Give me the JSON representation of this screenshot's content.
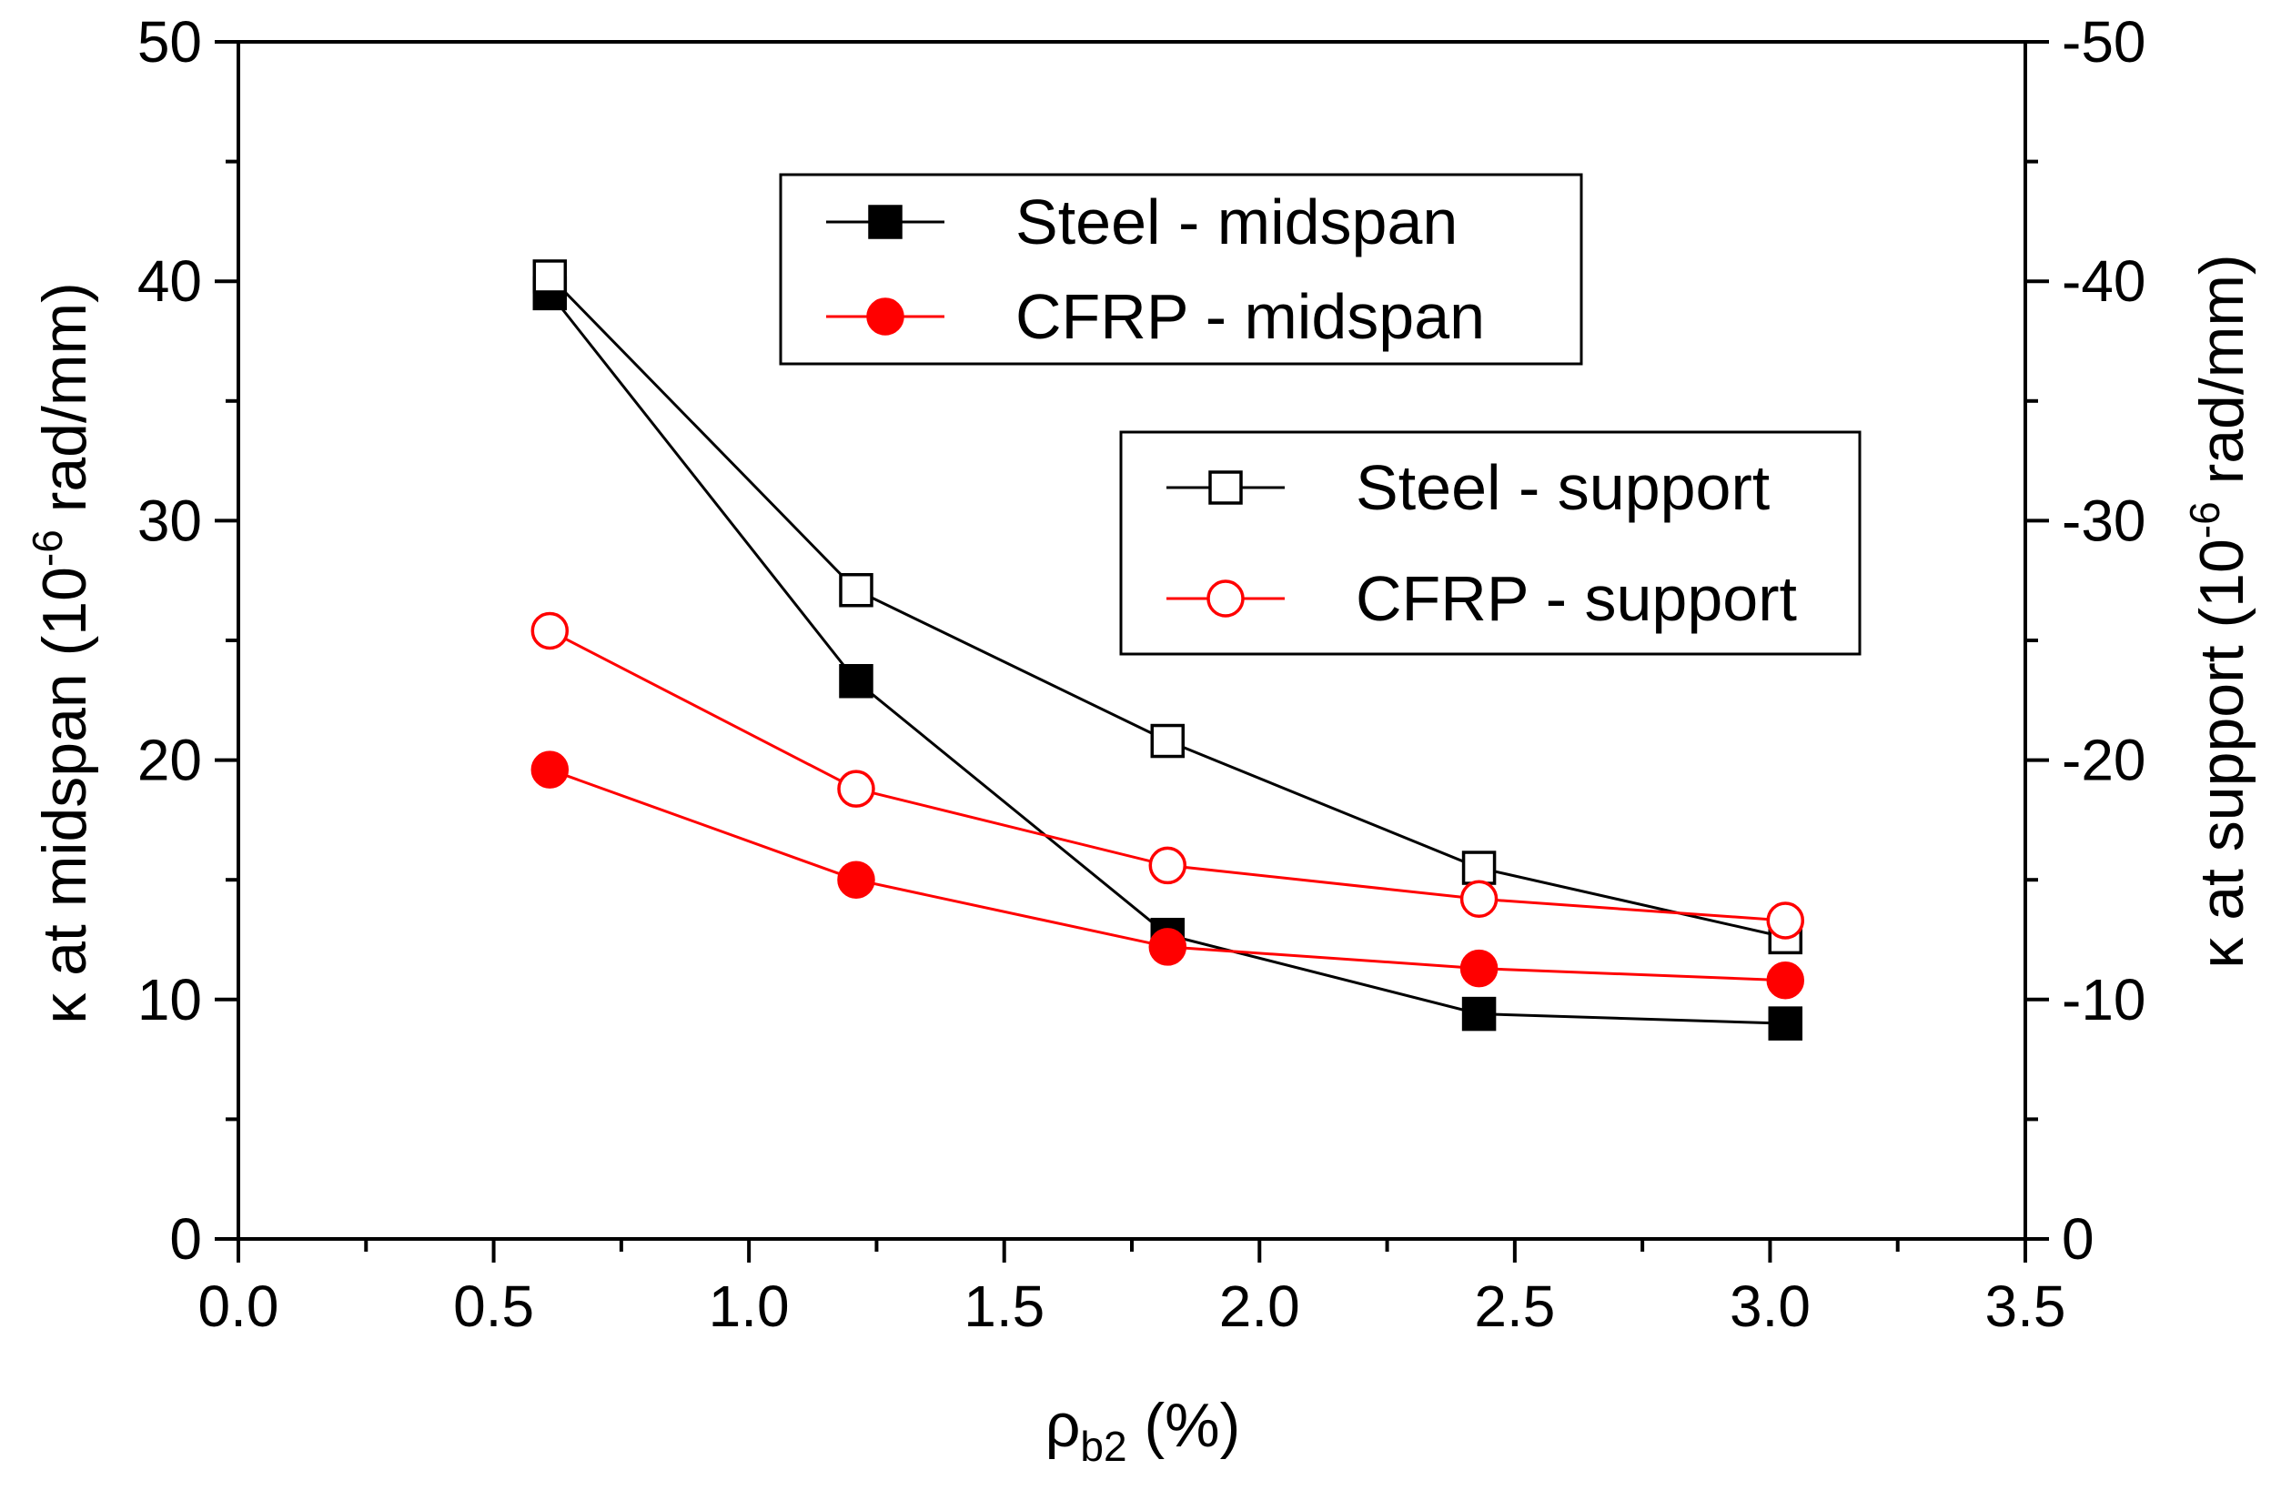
{
  "chart_data": {
    "type": "line",
    "title": "",
    "xlabel": {
      "symbol": "ρ",
      "subscript": "b2",
      "unit": " (%)"
    },
    "ylabel_left": {
      "prefix": "κ at midspan (10",
      "superscript": "-6",
      "suffix": " rad/mm)"
    },
    "ylabel_right": {
      "prefix": "κ at support (10",
      "superscript": "-6",
      "suffix": " rad/mm)"
    },
    "xlim": [
      0.0,
      3.5
    ],
    "ylim_left": [
      0,
      50
    ],
    "ylim_right": [
      0,
      -50
    ],
    "x_ticks": [
      "0.0",
      "0.5",
      "1.0",
      "1.5",
      "2.0",
      "2.5",
      "3.0",
      "3.5"
    ],
    "y_left_ticks": [
      "0",
      "10",
      "20",
      "30",
      "40",
      "50"
    ],
    "y_right_ticks": [
      "0",
      "-10",
      "-20",
      "-30",
      "-40",
      "-50"
    ],
    "x": [
      0.61,
      1.21,
      1.82,
      2.43,
      3.03
    ],
    "series": [
      {
        "name": "Steel - midspan",
        "axis": "left",
        "color": "#000000",
        "marker": "square",
        "filled": true,
        "values": [
          39.5,
          23.3,
          12.7,
          9.4,
          9.0
        ]
      },
      {
        "name": "CFRP - midspan",
        "axis": "left",
        "color": "#ff0000",
        "marker": "circle",
        "filled": true,
        "values": [
          19.6,
          15.0,
          12.2,
          11.3,
          10.8
        ]
      },
      {
        "name": "Steel - support",
        "axis": "right",
        "color": "#000000",
        "marker": "square",
        "filled": false,
        "values": [
          -40.2,
          -27.1,
          -20.8,
          -15.5,
          -12.6
        ]
      },
      {
        "name": "CFRP - support",
        "axis": "right",
        "color": "#ff0000",
        "marker": "circle",
        "filled": false,
        "values": [
          -25.4,
          -18.8,
          -15.6,
          -14.2,
          -13.3
        ]
      }
    ],
    "legends": [
      {
        "position": "top-center",
        "entries": [
          "Steel - midspan",
          "CFRP - midspan"
        ]
      },
      {
        "position": "upper-right",
        "entries": [
          "Steel - support",
          "CFRP - support"
        ]
      }
    ],
    "grid": false
  }
}
